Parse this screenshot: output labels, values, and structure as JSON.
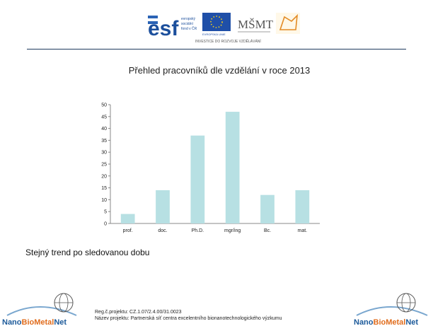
{
  "header": {
    "esf_logo_lines": [
      "evropský",
      "sociální",
      "fond v ČR"
    ],
    "eu_label": "EVROPSKÁ UNIE",
    "msmt_label": "MŠMT",
    "logo_caption": "INVESTICE DO ROZVOJE VZDĚLÁVÁNÍ"
  },
  "slide_text": "Stejný trend po sledovanou dobu",
  "footer": {
    "logo_text": {
      "nano": "Nano",
      "bio": "Bio",
      "metal": "Metal",
      "net": "Net"
    },
    "reg_line": "Reg.č.projektu: CZ.1.07/2.4.00/31.0023",
    "name_line": "Název projektu: Partnerská síť centra excelentního bionanotechnologického výzkumu"
  },
  "colors": {
    "bar": "#b7e0e3",
    "rule": "#1f3a5f",
    "brand_orange": "#e06d1e",
    "brand_blue": "#1c5a9a"
  },
  "chart_data": {
    "type": "bar",
    "title": "Přehled pracovníků dle vzdělání v roce 2013",
    "categories": [
      "prof.",
      "doc.",
      "Ph.D.",
      "mgr/ing",
      "Bc.",
      "mat."
    ],
    "values": [
      4,
      14,
      37,
      47,
      12,
      14
    ],
    "ylim": [
      0,
      50
    ],
    "yticks": [
      0,
      5,
      10,
      15,
      20,
      25,
      30,
      35,
      40,
      45,
      50
    ],
    "grid": false,
    "legend": "none"
  }
}
